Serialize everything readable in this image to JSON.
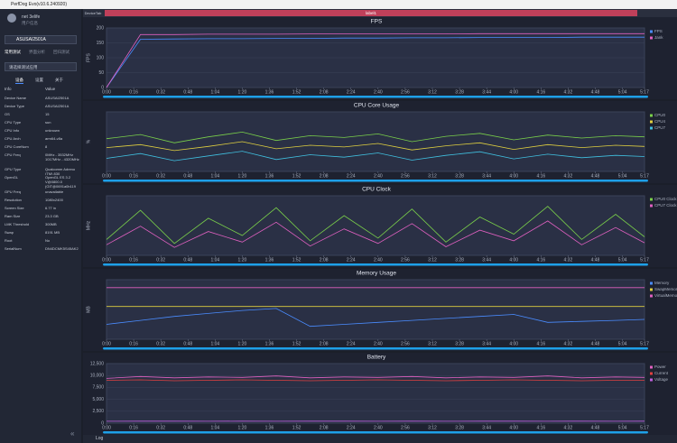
{
  "window": {
    "title": "PerfDog Evo(v10.6.240920)",
    "tab_left": "DeviceTab",
    "tab_center": "label1",
    "log": "Log"
  },
  "sidebar": {
    "user": "net 3elife",
    "user_info": "用户信息",
    "device": "ASUSAI2501A",
    "modes": [
      "常用测试",
      "界面分析",
      "回归测试"
    ],
    "app": "请选择测试应用",
    "tabs": [
      "设备",
      "设置",
      "关于"
    ],
    "header": [
      "Info",
      "Value"
    ],
    "rows": [
      [
        "Device Name",
        "ASUSAI2501A"
      ],
      [
        "Device Type",
        "ASUSAI2501A"
      ],
      [
        "OS",
        "15"
      ],
      [
        "CPU Type",
        "sun"
      ],
      [
        "CPU Info",
        "unknown"
      ],
      [
        "CPU Arch",
        "arm64-v8a"
      ],
      [
        "CPU CoreNum",
        "8"
      ],
      [
        "CPU Freq",
        "0MHz - 3532MHz 1017MHz - 4320MHz"
      ],
      [
        "GPU Type",
        "Qualcomm Adreno (TM) 830"
      ],
      [
        "OpenGL",
        "OpenGL ES 3.2 V@0800.0 (GIT@0691a0b119"
      ],
      [
        "GPU Freq",
        "unavailable"
      ],
      [
        "Resolution",
        "1080x2400"
      ],
      [
        "Screen Size",
        "6.77 in"
      ],
      [
        "Ram Size",
        "23.3 GB"
      ],
      [
        "LMK Threshold",
        "300MB"
      ],
      [
        "Swap",
        "8191 MB"
      ],
      [
        "Root",
        "No"
      ],
      [
        "SerialNum",
        "DN4DCMK5S45AK2"
      ]
    ]
  },
  "chart_data": [
    {
      "type": "line",
      "title": "FPS",
      "y_label": "FPS",
      "xlim": [
        0,
        317
      ],
      "ylim": [
        0,
        200
      ],
      "yticks": [
        0,
        50,
        100,
        150,
        200
      ],
      "xticks": [
        {
          "value": 0,
          "label": "0:00"
        },
        {
          "value": 16,
          "label": "0:16"
        },
        {
          "value": 32,
          "label": "0:32"
        },
        {
          "value": 48,
          "label": "0:48"
        },
        {
          "value": 64,
          "label": "1:04"
        },
        {
          "value": 80,
          "label": "1:20"
        },
        {
          "value": 96,
          "label": "1:36"
        },
        {
          "value": 112,
          "label": "1:52"
        },
        {
          "value": 128,
          "label": "2:08"
        },
        {
          "value": 144,
          "label": "2:24"
        },
        {
          "value": 160,
          "label": "2:40"
        },
        {
          "value": 176,
          "label": "2:56"
        },
        {
          "value": 192,
          "label": "3:12"
        },
        {
          "value": 208,
          "label": "3:28"
        },
        {
          "value": 224,
          "label": "3:44"
        },
        {
          "value": 240,
          "label": "4:00"
        },
        {
          "value": 256,
          "label": "4:16"
        },
        {
          "value": 272,
          "label": "4:32"
        },
        {
          "value": 288,
          "label": "4:48"
        },
        {
          "value": 304,
          "label": "5:04"
        },
        {
          "value": 317,
          "label": "5:17"
        }
      ],
      "x": [
        0,
        20,
        40,
        60,
        80,
        100,
        120,
        140,
        160,
        180,
        200,
        220,
        240,
        260,
        280,
        300,
        317
      ],
      "series": [
        {
          "name": "FPS",
          "color": "#4a8cff",
          "values": [
            0,
            162,
            163,
            164,
            164,
            165,
            165,
            166,
            166,
            167,
            167,
            168,
            168,
            168,
            169,
            169,
            169
          ]
        },
        {
          "name": "Jank",
          "color": "#e060c0",
          "values": [
            0,
            178,
            178,
            179,
            179,
            179,
            180,
            180,
            180,
            180,
            180,
            181,
            181,
            181,
            181,
            181,
            181
          ]
        }
      ]
    },
    {
      "type": "line",
      "title": "CPU Core Usage",
      "y_label": "%",
      "xlim": [
        0,
        317
      ],
      "ylim": [
        0,
        100
      ],
      "xticks": [
        {
          "value": 0,
          "label": "0:00"
        },
        {
          "value": 16,
          "label": "0:16"
        },
        {
          "value": 32,
          "label": "0:32"
        },
        {
          "value": 48,
          "label": "0:48"
        },
        {
          "value": 64,
          "label": "1:04"
        },
        {
          "value": 80,
          "label": "1:20"
        },
        {
          "value": 96,
          "label": "1:36"
        },
        {
          "value": 112,
          "label": "1:52"
        },
        {
          "value": 128,
          "label": "2:08"
        },
        {
          "value": 144,
          "label": "2:24"
        },
        {
          "value": 160,
          "label": "2:40"
        },
        {
          "value": 176,
          "label": "2:56"
        },
        {
          "value": 192,
          "label": "3:12"
        },
        {
          "value": 208,
          "label": "3:28"
        },
        {
          "value": 224,
          "label": "3:44"
        },
        {
          "value": 240,
          "label": "4:00"
        },
        {
          "value": 256,
          "label": "4:16"
        },
        {
          "value": 272,
          "label": "4:32"
        },
        {
          "value": 288,
          "label": "4:48"
        },
        {
          "value": 304,
          "label": "5:04"
        },
        {
          "value": 317,
          "label": "5:17"
        }
      ],
      "x": [
        0,
        20,
        40,
        60,
        80,
        100,
        120,
        140,
        160,
        180,
        200,
        220,
        240,
        260,
        280,
        300,
        317
      ],
      "series": [
        {
          "name": "CPU0",
          "color": "#7ad04a",
          "values": [
            55,
            62,
            48,
            58,
            66,
            52,
            60,
            57,
            63,
            50,
            59,
            64,
            53,
            61,
            56,
            60,
            58
          ]
        },
        {
          "name": "CPU4",
          "color": "#e0d040",
          "values": [
            40,
            45,
            35,
            42,
            50,
            38,
            44,
            41,
            47,
            36,
            43,
            48,
            37,
            45,
            40,
            44,
            42
          ]
        },
        {
          "name": "CPU7",
          "color": "#40c0e0",
          "values": [
            22,
            30,
            18,
            26,
            34,
            20,
            28,
            24,
            31,
            19,
            27,
            33,
            21,
            29,
            23,
            27,
            25
          ]
        }
      ]
    },
    {
      "type": "line",
      "title": "CPU Clock",
      "y_label": "MHz",
      "xlim": [
        0,
        317
      ],
      "ylim": [
        0,
        4500
      ],
      "xticks": [
        {
          "value": 0,
          "label": "0:00"
        },
        {
          "value": 16,
          "label": "0:16"
        },
        {
          "value": 32,
          "label": "0:32"
        },
        {
          "value": 48,
          "label": "0:48"
        },
        {
          "value": 64,
          "label": "1:04"
        },
        {
          "value": 80,
          "label": "1:20"
        },
        {
          "value": 96,
          "label": "1:36"
        },
        {
          "value": 112,
          "label": "1:52"
        },
        {
          "value": 128,
          "label": "2:08"
        },
        {
          "value": 144,
          "label": "2:24"
        },
        {
          "value": 160,
          "label": "2:40"
        },
        {
          "value": 176,
          "label": "2:56"
        },
        {
          "value": 192,
          "label": "3:12"
        },
        {
          "value": 208,
          "label": "3:28"
        },
        {
          "value": 224,
          "label": "3:44"
        },
        {
          "value": 240,
          "label": "4:00"
        },
        {
          "value": 256,
          "label": "4:16"
        },
        {
          "value": 272,
          "label": "4:32"
        },
        {
          "value": 288,
          "label": "4:48"
        },
        {
          "value": 304,
          "label": "5:04"
        },
        {
          "value": 317,
          "label": "5:17"
        }
      ],
      "x": [
        0,
        20,
        40,
        60,
        80,
        100,
        120,
        140,
        160,
        180,
        200,
        220,
        240,
        260,
        280,
        300,
        317
      ],
      "series": [
        {
          "name": "CPU0 Clock",
          "color": "#7ad04a",
          "values": [
            1200,
            3400,
            900,
            2800,
            1500,
            3600,
            1100,
            3000,
            1300,
            3500,
            1000,
            2900,
            1600,
            3700,
            1200,
            3100,
            1400
          ]
        },
        {
          "name": "CPU7 Clock",
          "color": "#e060c0",
          "values": [
            800,
            2200,
            600,
            1800,
            1000,
            2500,
            700,
            2000,
            900,
            2400,
            650,
            1900,
            1100,
            2600,
            800,
            2100,
            950
          ]
        }
      ]
    },
    {
      "type": "line",
      "title": "Memory Usage",
      "y_label": "MB",
      "xlim": [
        0,
        317
      ],
      "ylim": [
        0,
        6000
      ],
      "xticks": [
        {
          "value": 0,
          "label": "0:00"
        },
        {
          "value": 16,
          "label": "0:16"
        },
        {
          "value": 32,
          "label": "0:32"
        },
        {
          "value": 48,
          "label": "0:48"
        },
        {
          "value": 64,
          "label": "1:04"
        },
        {
          "value": 80,
          "label": "1:20"
        },
        {
          "value": 96,
          "label": "1:36"
        },
        {
          "value": 112,
          "label": "1:52"
        },
        {
          "value": 128,
          "label": "2:08"
        },
        {
          "value": 144,
          "label": "2:24"
        },
        {
          "value": 160,
          "label": "2:40"
        },
        {
          "value": 176,
          "label": "2:56"
        },
        {
          "value": 192,
          "label": "3:12"
        },
        {
          "value": 208,
          "label": "3:28"
        },
        {
          "value": 224,
          "label": "3:44"
        },
        {
          "value": 240,
          "label": "4:00"
        },
        {
          "value": 256,
          "label": "4:16"
        },
        {
          "value": 272,
          "label": "4:32"
        },
        {
          "value": 288,
          "label": "4:48"
        },
        {
          "value": 304,
          "label": "5:04"
        },
        {
          "value": 317,
          "label": "5:17"
        }
      ],
      "x": [
        0,
        20,
        40,
        60,
        80,
        100,
        120,
        140,
        160,
        180,
        200,
        220,
        240,
        260,
        280,
        300,
        317
      ],
      "series": [
        {
          "name": "Memory",
          "color": "#4a8cff",
          "values": [
            1500,
            1900,
            2300,
            2600,
            2900,
            3100,
            1300,
            1500,
            1700,
            1900,
            2100,
            2300,
            2500,
            1700,
            1800,
            1900,
            2000
          ]
        },
        {
          "name": "SwapMemory",
          "color": "#e0d040",
          "values": [
            3300,
            3300,
            3300,
            3300,
            3300,
            3300,
            3300,
            3300,
            3300,
            3300,
            3300,
            3300,
            3300,
            3300,
            3300,
            3300,
            3300
          ]
        },
        {
          "name": "VirtualMemory",
          "color": "#e060c0",
          "values": [
            5200,
            5200,
            5200,
            5200,
            5200,
            5200,
            5200,
            5200,
            5200,
            5200,
            5200,
            5200,
            5200,
            5200,
            5200,
            5200,
            5200
          ]
        }
      ]
    },
    {
      "type": "line",
      "title": "Battery",
      "y_label": "",
      "xlim": [
        0,
        317
      ],
      "ylim": [
        0,
        12500
      ],
      "yticks": [
        0,
        {
          "value": 2500,
          "label": "2,500"
        },
        {
          "value": 5000,
          "label": "5,000"
        },
        {
          "value": 7500,
          "label": "7,500"
        },
        {
          "value": 10000,
          "label": "10,000"
        },
        {
          "value": 12500,
          "label": "12,500"
        }
      ],
      "xticks": [
        {
          "value": 0,
          "label": "0:00"
        },
        {
          "value": 16,
          "label": "0:16"
        },
        {
          "value": 32,
          "label": "0:32"
        },
        {
          "value": 48,
          "label": "0:48"
        },
        {
          "value": 64,
          "label": "1:04"
        },
        {
          "value": 80,
          "label": "1:20"
        },
        {
          "value": 96,
          "label": "1:36"
        },
        {
          "value": 112,
          "label": "1:52"
        },
        {
          "value": 128,
          "label": "2:08"
        },
        {
          "value": 144,
          "label": "2:24"
        },
        {
          "value": 160,
          "label": "2:40"
        },
        {
          "value": 176,
          "label": "2:56"
        },
        {
          "value": 192,
          "label": "3:12"
        },
        {
          "value": 208,
          "label": "3:28"
        },
        {
          "value": 224,
          "label": "3:44"
        },
        {
          "value": 240,
          "label": "4:00"
        },
        {
          "value": 256,
          "label": "4:16"
        },
        {
          "value": 272,
          "label": "4:32"
        },
        {
          "value": 288,
          "label": "4:48"
        },
        {
          "value": 304,
          "label": "5:04"
        },
        {
          "value": 317,
          "label": "5:17"
        }
      ],
      "x": [
        0,
        20,
        40,
        60,
        80,
        100,
        120,
        140,
        160,
        180,
        200,
        220,
        240,
        260,
        280,
        300,
        317
      ],
      "series": [
        {
          "name": "Power",
          "color": "#e060c0",
          "values": [
            9400,
            9800,
            9500,
            9700,
            9600,
            9900,
            9500,
            9700,
            9600,
            9800,
            9500,
            9700,
            9600,
            9900,
            9500,
            9700,
            9600
          ]
        },
        {
          "name": "Current",
          "color": "#e04040",
          "values": [
            9000,
            9100,
            8900,
            9000,
            9100,
            9000,
            8900,
            9000,
            9100,
            9000,
            8900,
            9000,
            9100,
            9000,
            8900,
            9000,
            9000
          ]
        },
        {
          "name": "Voltage",
          "color": "#c060e0",
          "values": [
            400,
            420,
            410,
            400,
            415,
            405,
            420,
            410,
            400,
            415,
            405,
            420,
            410,
            400,
            415,
            405,
            410
          ]
        }
      ]
    }
  ]
}
